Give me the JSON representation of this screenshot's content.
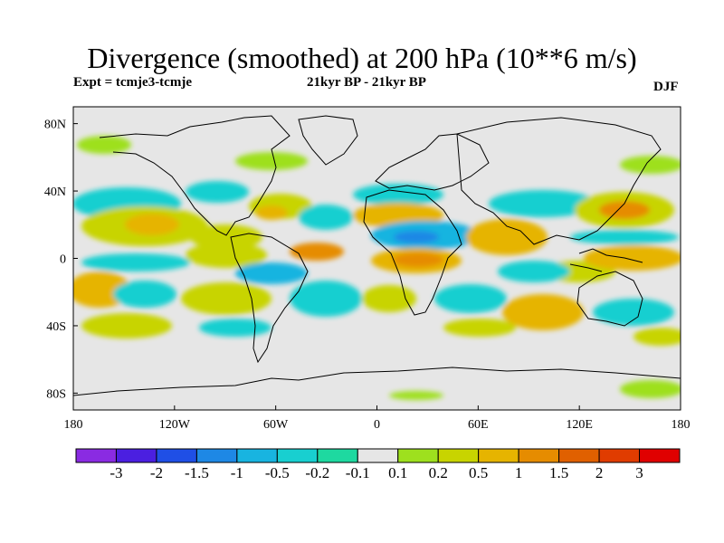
{
  "title": "Divergence (smoothed) at 200 hPa (10**6 m/s)",
  "subtitle_left": "Expt = tcmje3-tcmje",
  "subtitle_center": "21kyr BP - 21kyr BP",
  "subtitle_right": "DJF",
  "map": {
    "projection": "cylindrical-equidistant",
    "lon_range": [
      -180,
      180
    ],
    "lat_range": [
      -90,
      90
    ],
    "background_color": "#e6e6e6",
    "coastline_color": "#000000",
    "x_ticks": [
      "180",
      "120W",
      "60W",
      "0",
      "60E",
      "120E",
      "180"
    ],
    "y_ticks": [
      "80N",
      "40N",
      "0",
      "40S",
      "80S"
    ]
  },
  "colorbar": {
    "labels": [
      "-3",
      "-2",
      "-1.5",
      "-1",
      "-0.5",
      "-0.2",
      "-0.1",
      "0.1",
      "0.2",
      "0.5",
      "1",
      "1.5",
      "2",
      "3"
    ],
    "colors": [
      "#8a2be2",
      "#4b1fe0",
      "#1f4fe6",
      "#1e88e5",
      "#18b4e0",
      "#18cfd0",
      "#1ed9a0",
      "#e6e6e6",
      "#9ee01e",
      "#c8d400",
      "#e6b400",
      "#e68c00",
      "#e06000",
      "#e03c00",
      "#e00000"
    ]
  },
  "chart_data": {
    "type": "heatmap",
    "title": "Divergence (smoothed) at 200 hPa (10**6 m/s)",
    "xlabel": "",
    "ylabel": "",
    "xlim": [
      -180,
      180
    ],
    "ylim": [
      -90,
      90
    ],
    "x_tick_labels": [
      "180",
      "120W",
      "60W",
      "0",
      "60E",
      "120E",
      "180"
    ],
    "y_tick_labels": [
      "80N",
      "40N",
      "0",
      "40S",
      "80S"
    ],
    "levels": [
      -3,
      -2,
      -1.5,
      -1,
      -0.5,
      -0.2,
      -0.1,
      0.1,
      0.2,
      0.5,
      1,
      1.5,
      2,
      3
    ],
    "features": [
      {
        "lon": -150,
        "lat": 18,
        "value": 1.0
      },
      {
        "lon": -110,
        "lat": 10,
        "value": 0.5
      },
      {
        "lon": -130,
        "lat": 35,
        "value": -0.5
      },
      {
        "lon": -160,
        "lat": 65,
        "value": 0.2
      },
      {
        "lon": -55,
        "lat": 30,
        "value": 0.5
      },
      {
        "lon": -20,
        "lat": 22,
        "value": -0.5
      },
      {
        "lon": 5,
        "lat": 25,
        "value": 0.5
      },
      {
        "lon": 25,
        "lat": 12,
        "value": -1.0
      },
      {
        "lon": 15,
        "lat": 0,
        "value": 1.5
      },
      {
        "lon": 50,
        "lat": 2,
        "value": 0.5
      },
      {
        "lon": 60,
        "lat": 25,
        "value": -0.5
      },
      {
        "lon": 120,
        "lat": 20,
        "value": 1.0
      },
      {
        "lon": 150,
        "lat": 25,
        "value": 1.0
      },
      {
        "lon": 150,
        "lat": -5,
        "value": 0.5
      },
      {
        "lon": 90,
        "lat": -20,
        "value": -0.5
      },
      {
        "lon": -20,
        "lat": -20,
        "value": -0.5
      },
      {
        "lon": -100,
        "lat": -20,
        "value": 0.5
      },
      {
        "lon": -160,
        "lat": -30,
        "value": 0.5
      },
      {
        "lon": 150,
        "lat": -40,
        "value": -0.5
      },
      {
        "lon": -50,
        "lat": 5,
        "value": 0.5
      },
      {
        "lon": -130,
        "lat": -35,
        "value": -0.5
      },
      {
        "lon": 170,
        "lat": -70,
        "value": 0.5
      }
    ]
  }
}
